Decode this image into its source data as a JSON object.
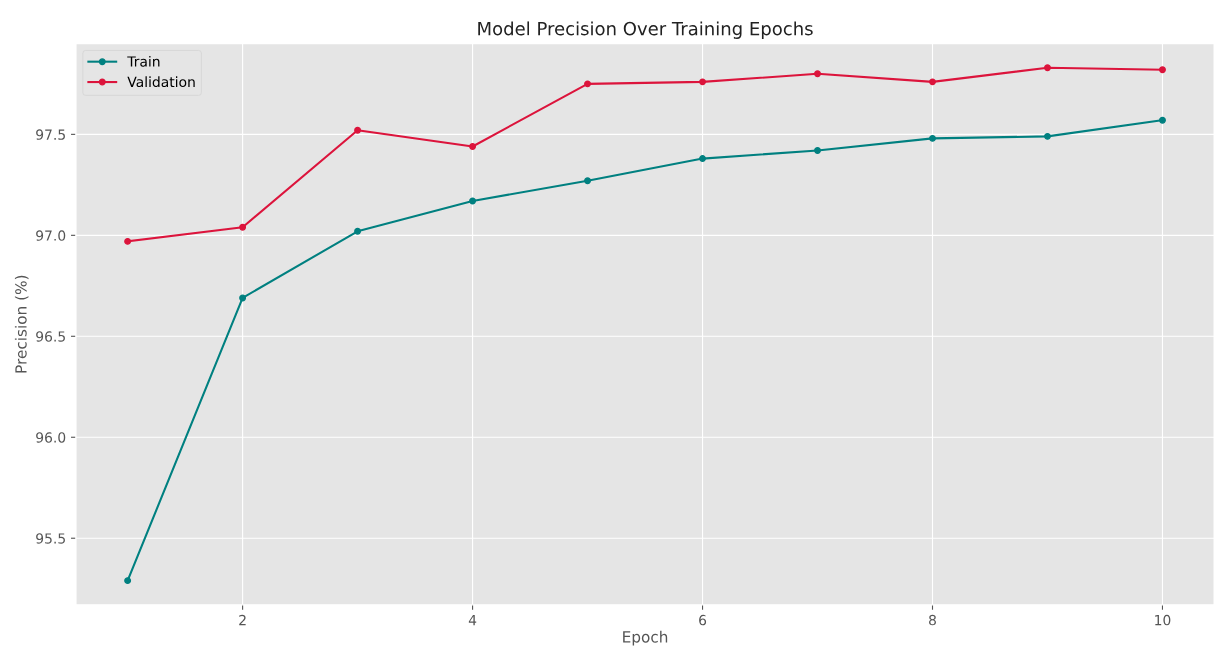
{
  "chart_data": {
    "type": "line",
    "title": "Model Precision Over Training Epochs",
    "xlabel": "Epoch",
    "ylabel": "Precision (%)",
    "x": [
      1,
      2,
      3,
      4,
      5,
      6,
      7,
      8,
      9,
      10
    ],
    "series": [
      {
        "name": "Train",
        "color": "#008080",
        "values": [
          95.29,
          96.69,
          97.02,
          97.17,
          97.27,
          97.38,
          97.42,
          97.48,
          97.49,
          97.57
        ]
      },
      {
        "name": "Validation",
        "color": "#dc143c",
        "values": [
          96.97,
          97.04,
          97.52,
          97.44,
          97.75,
          97.76,
          97.8,
          97.76,
          97.83,
          97.82
        ]
      }
    ],
    "xlim": [
      0.55,
      10.45
    ],
    "xticks": [
      2,
      4,
      6,
      8,
      10
    ],
    "ylim": [
      95.17,
      97.95
    ],
    "yticks": [
      {
        "value": 95.5,
        "label": "95.5"
      },
      {
        "value": 96.0,
        "label": "96.0"
      },
      {
        "value": 96.5,
        "label": "96.5"
      },
      {
        "value": 97.0,
        "label": "97.0"
      },
      {
        "value": 97.5,
        "label": "97.5"
      }
    ],
    "grid": true,
    "legend": "top left",
    "marker": "circle",
    "line_style": "solid"
  }
}
